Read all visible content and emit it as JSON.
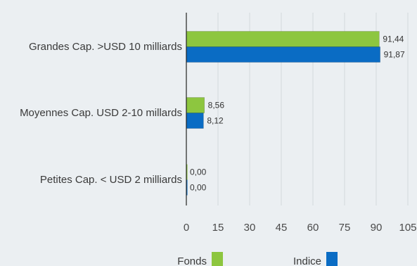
{
  "chart_data": {
    "type": "bar",
    "orientation": "horizontal",
    "categories": [
      "Grandes Cap. >USD 10 milliards",
      "Moyennes Cap. USD 2-10 millards",
      "Petites Cap. < USD 2 milliards"
    ],
    "series": [
      {
        "name": "Fonds",
        "values": [
          91.44,
          8.56,
          0.0
        ],
        "labels": [
          "91,44",
          "8,56",
          "0,00"
        ],
        "color": "#8dc63f"
      },
      {
        "name": "Indice",
        "values": [
          91.87,
          8.12,
          0.0
        ],
        "labels": [
          "91,87",
          "8,12",
          "0,00"
        ],
        "color": "#0a6cc4"
      }
    ],
    "xlim": [
      0,
      105
    ],
    "xticks": [
      "0",
      "15",
      "30",
      "45",
      "60",
      "75",
      "90",
      "105"
    ],
    "xtick_values": [
      0,
      15,
      30,
      45,
      60,
      75,
      90,
      105
    ],
    "grid": true,
    "legend_position": "bottom"
  }
}
